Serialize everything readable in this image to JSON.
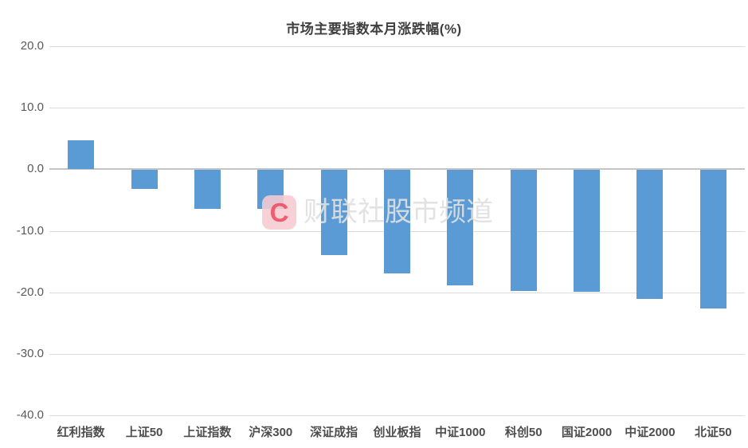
{
  "chart_data": {
    "type": "bar",
    "title": "市场主要指数本月涨跌幅(%)",
    "categories": [
      "红利指数",
      "上证50",
      "上证指数",
      "沪深300",
      "深证成指",
      "创业板指",
      "中证1000",
      "科创50",
      "国证2000",
      "中证2000",
      "北证50"
    ],
    "values": [
      4.7,
      -3.1,
      -6.3,
      -6.3,
      -13.8,
      -16.8,
      -18.7,
      -19.6,
      -19.8,
      -21.0,
      -22.5
    ],
    "xlabel": "",
    "ylabel": "",
    "ylim": [
      -40,
      20
    ],
    "ytick_interval": 10,
    "ytick_labels": [
      "20.0",
      "10.0",
      "0.0",
      "-10.0",
      "-20.0",
      "-30.0",
      "-40.0"
    ],
    "grid": true,
    "legend": "none",
    "bar_color": "#5B9BD5",
    "gridline_color": "#DCDCDC"
  },
  "watermark": {
    "logo_letter": "C",
    "text": "财联社股市频道"
  }
}
